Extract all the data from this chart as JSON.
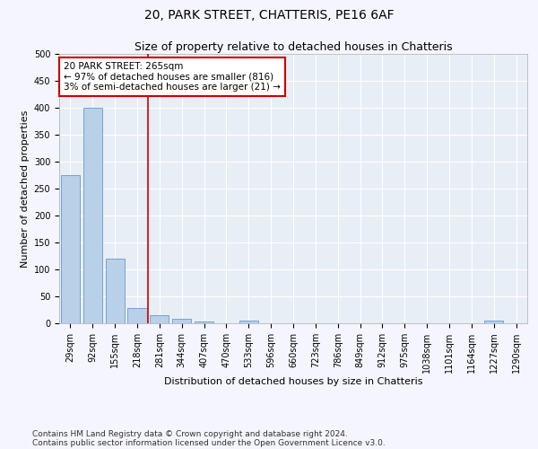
{
  "title": "20, PARK STREET, CHATTERIS, PE16 6AF",
  "subtitle": "Size of property relative to detached houses in Chatteris",
  "xlabel": "Distribution of detached houses by size in Chatteris",
  "ylabel": "Number of detached properties",
  "categories": [
    "29sqm",
    "92sqm",
    "155sqm",
    "218sqm",
    "281sqm",
    "344sqm",
    "407sqm",
    "470sqm",
    "533sqm",
    "596sqm",
    "660sqm",
    "723sqm",
    "786sqm",
    "849sqm",
    "912sqm",
    "975sqm",
    "1038sqm",
    "1101sqm",
    "1164sqm",
    "1227sqm",
    "1290sqm"
  ],
  "values": [
    275,
    400,
    120,
    28,
    15,
    8,
    4,
    0,
    5,
    0,
    0,
    0,
    0,
    0,
    0,
    0,
    0,
    0,
    0,
    5,
    0
  ],
  "bar_color": "#b8d0e8",
  "bar_edge_color": "#6699cc",
  "vline_x_index": 4,
  "vline_color": "#cc0000",
  "annotation_text": "20 PARK STREET: 265sqm\n← 97% of detached houses are smaller (816)\n3% of semi-detached houses are larger (21) →",
  "annotation_box_color": "#ffffff",
  "annotation_box_edge_color": "#cc0000",
  "ylim": [
    0,
    500
  ],
  "yticks": [
    0,
    50,
    100,
    150,
    200,
    250,
    300,
    350,
    400,
    450,
    500
  ],
  "background_color": "#e8eef5",
  "grid_color": "#ffffff",
  "fig_bg_color": "#f5f5ff",
  "footer_line1": "Contains HM Land Registry data © Crown copyright and database right 2024.",
  "footer_line2": "Contains public sector information licensed under the Open Government Licence v3.0.",
  "title_fontsize": 10,
  "subtitle_fontsize": 9,
  "axis_label_fontsize": 8,
  "tick_fontsize": 7,
  "annotation_fontsize": 7.5
}
